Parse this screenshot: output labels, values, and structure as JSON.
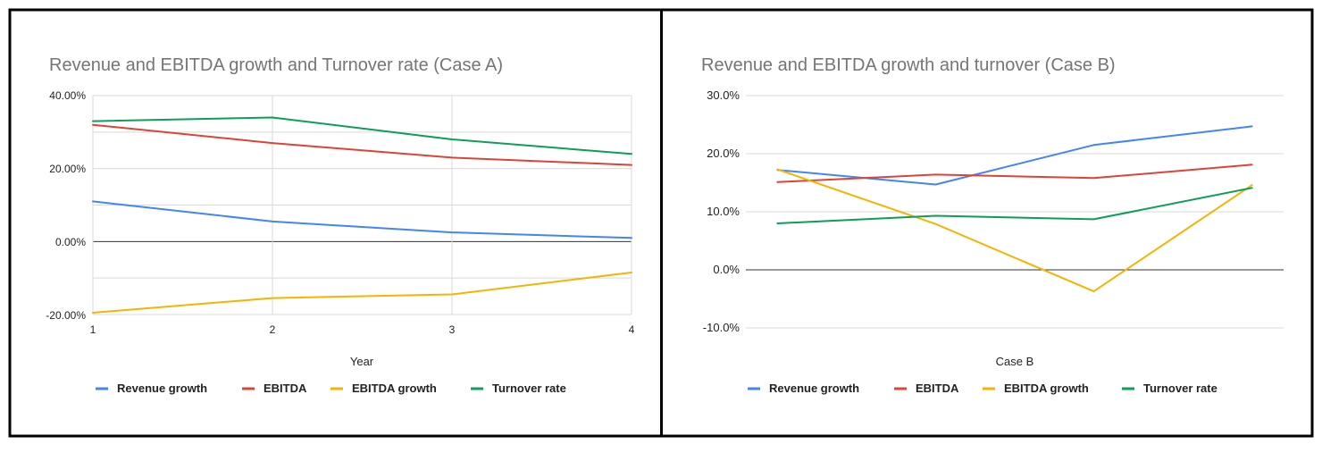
{
  "charts": {
    "a": {
      "title": "Revenue and EBITDA growth and Turnover rate (Case A)",
      "xlabel": "Year",
      "x_ticks": [
        "1",
        "2",
        "3",
        "4"
      ],
      "y_ticks": [
        "40.00%",
        "20.00%",
        "0.00%",
        "-20.00%"
      ],
      "legend": [
        "Revenue growth",
        "EBITDA",
        "EBITDA growth",
        "Turnover rate"
      ]
    },
    "b": {
      "title": "Revenue and EBITDA growth and turnover (Case B)",
      "xlabel": "Case B",
      "y_ticks": [
        "30.0%",
        "20.0%",
        "10.0%",
        "0.0%",
        "-10.0%"
      ],
      "legend": [
        "Revenue growth",
        "EBITDA",
        "EBITDA growth",
        "Turnover rate"
      ]
    }
  },
  "colors": {
    "revenue_growth": "#4285f4",
    "ebitda": "#db4437",
    "ebitda_growth": "#f4b400",
    "turnover_rate": "#0f9d58"
  },
  "chart_data": [
    {
      "type": "line",
      "title": "Revenue and EBITDA growth and Turnover rate (Case A)",
      "xlabel": "Year",
      "ylabel": "",
      "x": [
        1,
        2,
        3,
        4
      ],
      "xlim": [
        1,
        4
      ],
      "ylim": [
        -20,
        40
      ],
      "y_unit": "%",
      "grid": "both",
      "legend_position": "bottom",
      "series": [
        {
          "name": "Revenue growth",
          "values": [
            11,
            5.5,
            2.5,
            1
          ],
          "color": "#4285f4"
        },
        {
          "name": "EBITDA",
          "values": [
            32,
            27,
            23,
            21
          ],
          "color": "#db4437"
        },
        {
          "name": "EBITDA growth",
          "values": [
            -19.5,
            -15.5,
            -14.5,
            -8.5
          ],
          "color": "#f4b400"
        },
        {
          "name": "Turnover rate",
          "values": [
            33,
            34,
            28,
            24
          ],
          "color": "#0f9d58"
        }
      ]
    },
    {
      "type": "line",
      "title": "Revenue and EBITDA growth and turnover (Case B)",
      "xlabel": "Case B",
      "ylabel": "",
      "x": [
        1,
        2,
        3,
        4
      ],
      "xlim": [
        0.8,
        4.2
      ],
      "ylim": [
        -10,
        30
      ],
      "y_unit": "%",
      "grid": "horizontal",
      "legend_position": "bottom",
      "series": [
        {
          "name": "Revenue growth",
          "values": [
            17.2,
            14.7,
            21.5,
            24.7
          ],
          "color": "#4285f4"
        },
        {
          "name": "EBITDA",
          "values": [
            15.1,
            16.4,
            15.8,
            18.1
          ],
          "color": "#db4437"
        },
        {
          "name": "EBITDA growth",
          "values": [
            17.3,
            7.9,
            -3.7,
            14.6
          ],
          "color": "#f4b400"
        },
        {
          "name": "Turnover rate",
          "values": [
            8.0,
            9.3,
            8.7,
            14.1
          ],
          "color": "#0f9d58"
        }
      ]
    }
  ]
}
